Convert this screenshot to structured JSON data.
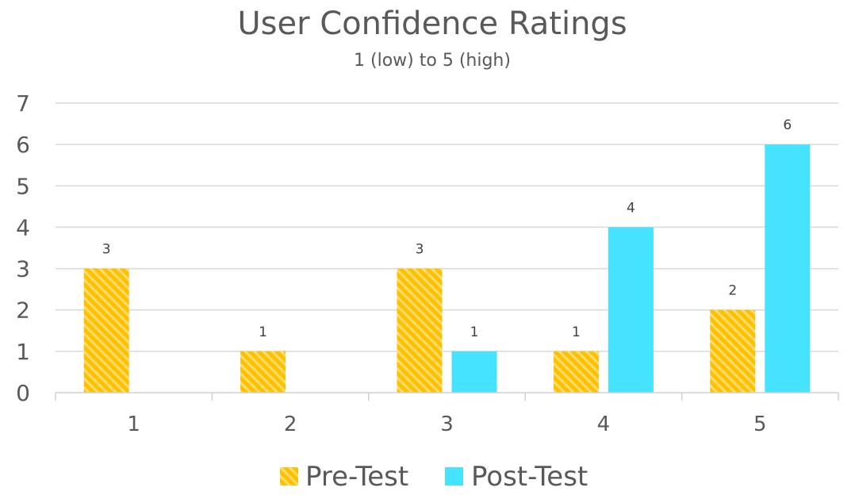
{
  "chart_data": {
    "type": "bar",
    "title": "User Confidence Ratings",
    "subtitle": "1 (low) to 5 (high)",
    "categories": [
      "1",
      "2",
      "3",
      "4",
      "5"
    ],
    "series": [
      {
        "name": "Pre-Test",
        "values": [
          3,
          1,
          3,
          1,
          2
        ],
        "color": "#FFC000",
        "pattern": "diagonal-stripes"
      },
      {
        "name": "Post-Test",
        "values": [
          null,
          null,
          1,
          4,
          6
        ],
        "color": "#45E3FF"
      }
    ],
    "ylim": [
      0,
      7
    ],
    "yticks": [
      "0",
      "1",
      "2",
      "3",
      "4",
      "5",
      "6",
      "7"
    ],
    "grid": true,
    "legend_position": "bottom"
  }
}
